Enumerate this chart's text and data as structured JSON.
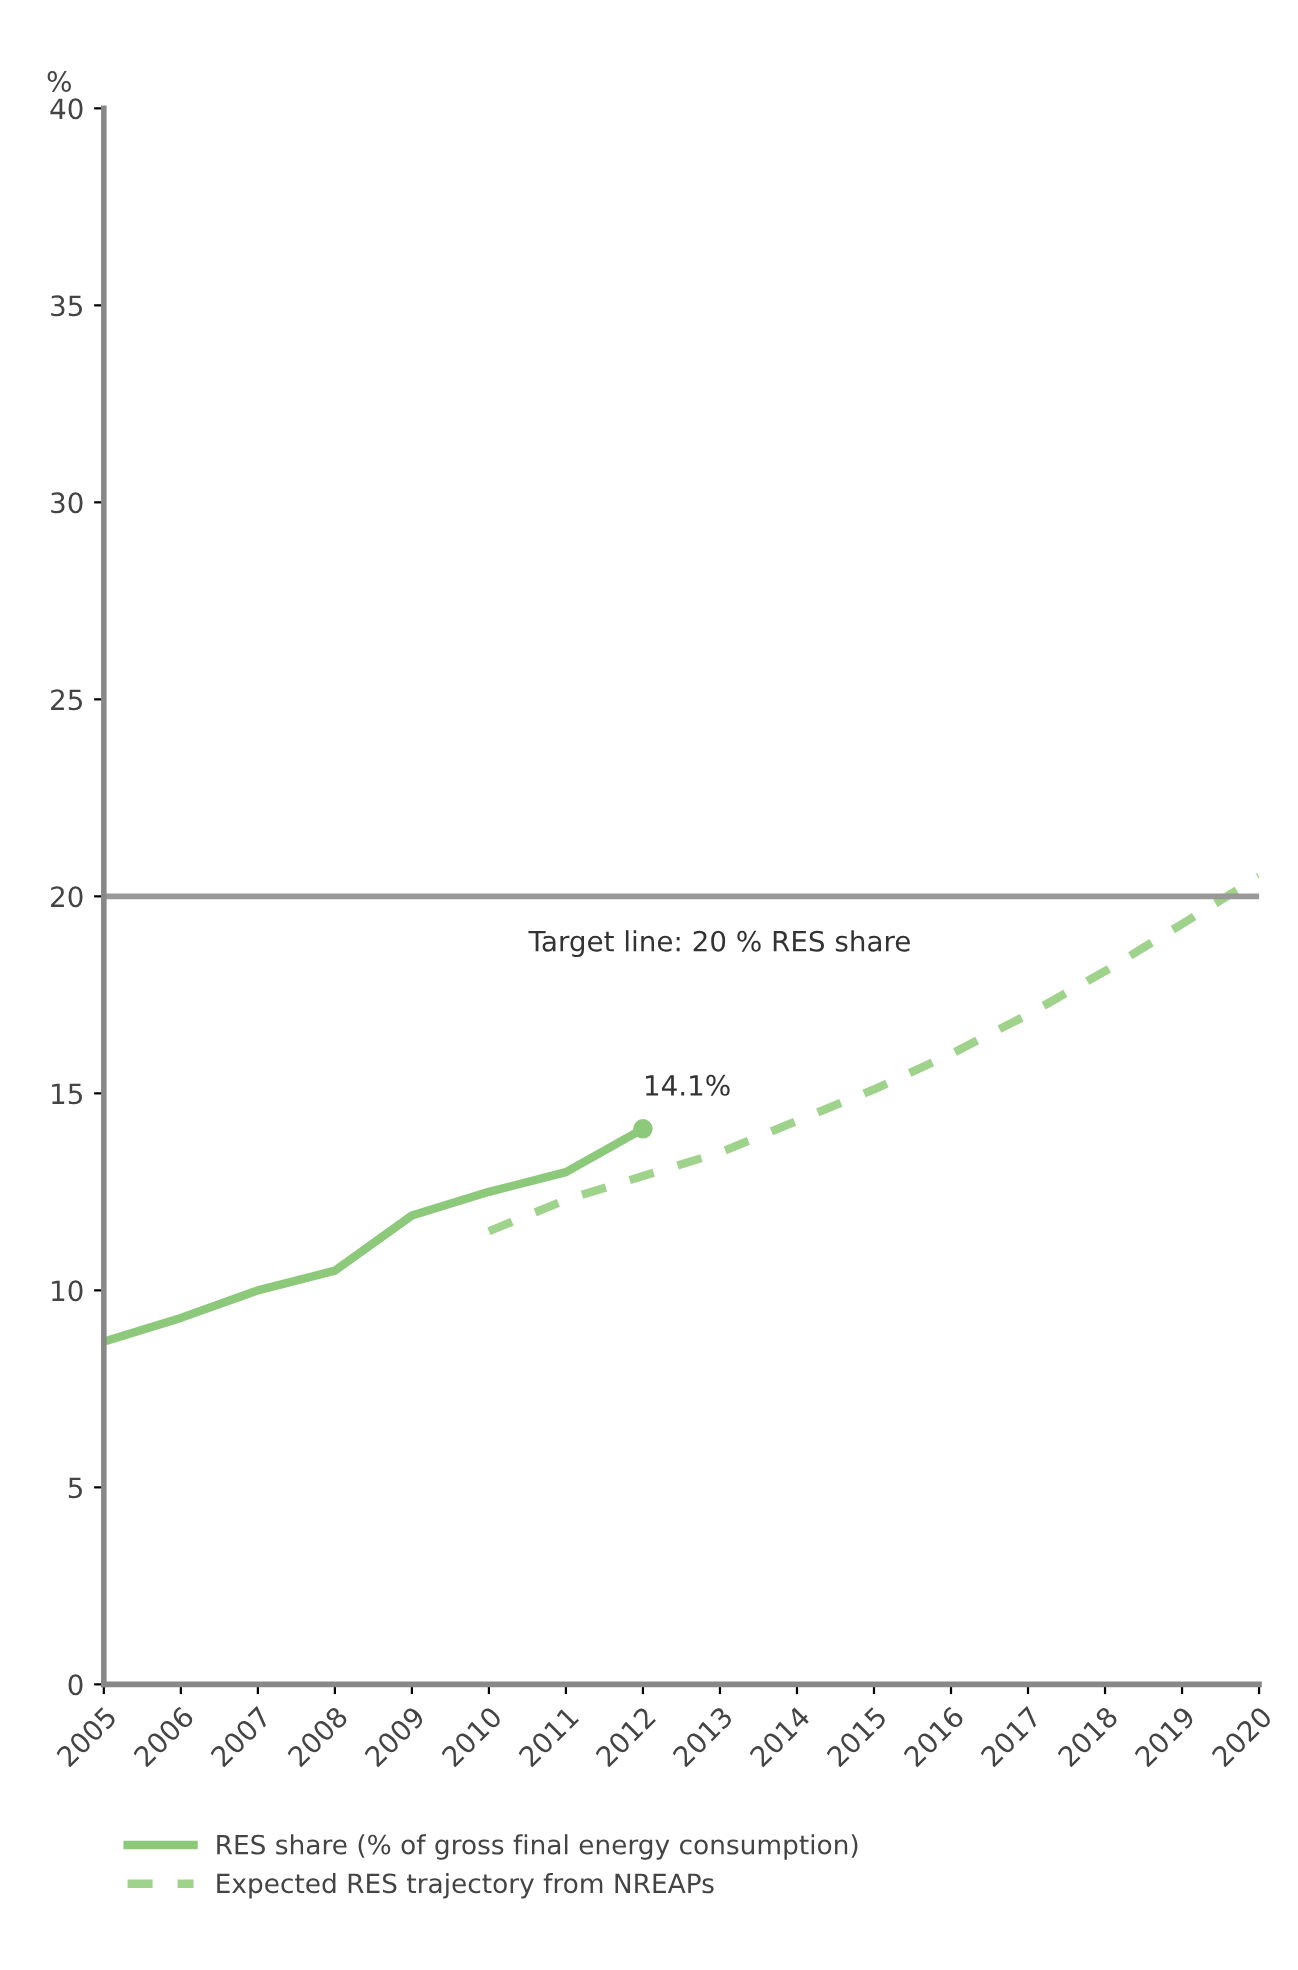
{
  "chart_data": {
    "type": "line",
    "ylabel": "%",
    "categories": [
      "2005",
      "2006",
      "2007",
      "2008",
      "2009",
      "2010",
      "2011",
      "2012",
      "2013",
      "2014",
      "2015",
      "2016",
      "2017",
      "2018",
      "2019",
      "2020"
    ],
    "series": [
      {
        "name": "RES share (% of gross final energy consumption)",
        "color": "#8cc97a",
        "line_style": "solid",
        "values": [
          8.7,
          9.3,
          10.0,
          10.5,
          11.9,
          12.5,
          13.0,
          14.1,
          null,
          null,
          null,
          null,
          null,
          null,
          null,
          null
        ]
      },
      {
        "name": "Expected RES trajectory from NREAPs",
        "color": "#9fd38b",
        "line_style": "dashed",
        "values": [
          null,
          null,
          null,
          null,
          null,
          11.5,
          12.3,
          12.9,
          13.5,
          14.3,
          15.1,
          16.0,
          17.0,
          18.1,
          19.3,
          20.5
        ]
      }
    ],
    "ylim": [
      0,
      40
    ],
    "yticks": [
      0,
      5,
      10,
      15,
      20,
      25,
      30,
      35,
      40
    ],
    "ref_lines": [
      {
        "axis": "y",
        "value": 20,
        "label": "Target line: 20 % RES share",
        "color": "#999999"
      }
    ],
    "annotations": [
      {
        "text": "14.1%",
        "x": "2012",
        "y": 14.1
      }
    ],
    "legend": "bottom",
    "grid": false
  }
}
